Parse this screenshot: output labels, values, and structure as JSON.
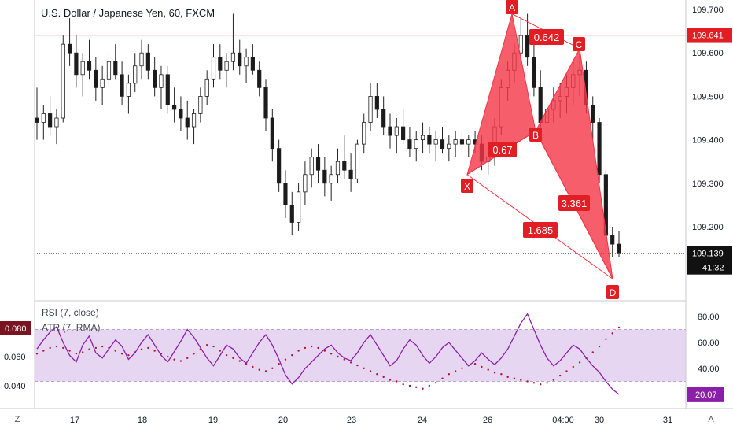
{
  "title": "U.S. Dollar / Japanese Yen, 60, FXCM",
  "colors": {
    "up": "#3a3a3a",
    "down": "#1b1b1b",
    "pattern_fill": "#f23645",
    "pattern_fill_opacity": 0.8,
    "pattern_line": "#f23645",
    "label_bg": "#e01e24",
    "hline": "#e01e24",
    "rsi": "#8b1fa9",
    "atr": "#b2182b",
    "rsi_band": "#e6d6f2",
    "price_tag_bg": "#111111",
    "grid": "#e0e3eb"
  },
  "chart_data": [
    {
      "type": "candlestick",
      "title": "U.S. Dollar / Japanese Yen, 60, FXCM",
      "x_ticks": [
        "17",
        "18",
        "19",
        "20",
        "23",
        "24",
        "26",
        "04:00",
        "30",
        "31"
      ],
      "y_ticks": [
        "109.700",
        "109.600",
        "109.500",
        "109.400",
        "109.300",
        "109.200"
      ],
      "ylim": [
        109.1,
        109.7
      ],
      "hline": {
        "value": 109.641,
        "label": "109.641"
      },
      "last_price": {
        "value": 109.139,
        "label": "109.139",
        "countdown": "41:32"
      },
      "ohlc_approx": [
        [
          109.45,
          109.52,
          109.4,
          109.44
        ],
        [
          109.44,
          109.48,
          109.4,
          109.46
        ],
        [
          109.46,
          109.5,
          109.41,
          109.43
        ],
        [
          109.43,
          109.47,
          109.39,
          109.45
        ],
        [
          109.45,
          109.64,
          109.44,
          109.62
        ],
        [
          109.62,
          109.68,
          109.57,
          109.6
        ],
        [
          109.6,
          109.64,
          109.52,
          109.55
        ],
        [
          109.55,
          109.6,
          109.5,
          109.58
        ],
        [
          109.58,
          109.63,
          109.54,
          109.56
        ],
        [
          109.56,
          109.59,
          109.49,
          109.52
        ],
        [
          109.52,
          109.57,
          109.48,
          109.54
        ],
        [
          109.54,
          109.6,
          109.52,
          109.58
        ],
        [
          109.58,
          109.62,
          109.54,
          109.55
        ],
        [
          109.55,
          109.58,
          109.48,
          109.5
        ],
        [
          109.5,
          109.55,
          109.46,
          109.53
        ],
        [
          109.53,
          109.6,
          109.51,
          109.57
        ],
        [
          109.57,
          109.63,
          109.54,
          109.6
        ],
        [
          109.6,
          109.62,
          109.54,
          109.56
        ],
        [
          109.56,
          109.59,
          109.5,
          109.52
        ],
        [
          109.52,
          109.57,
          109.47,
          109.55
        ],
        [
          109.55,
          109.57,
          109.46,
          109.48
        ],
        [
          109.48,
          109.52,
          109.44,
          109.47
        ],
        [
          109.47,
          109.5,
          109.42,
          109.45
        ],
        [
          109.45,
          109.49,
          109.4,
          109.43
        ],
        [
          109.43,
          109.47,
          109.39,
          109.46
        ],
        [
          109.46,
          109.52,
          109.44,
          109.5
        ],
        [
          109.5,
          109.56,
          109.48,
          109.54
        ],
        [
          109.54,
          109.62,
          109.52,
          109.59
        ],
        [
          109.59,
          109.62,
          109.54,
          109.56
        ],
        [
          109.56,
          109.6,
          109.52,
          109.58
        ],
        [
          109.58,
          109.69,
          109.56,
          109.6
        ],
        [
          109.6,
          109.63,
          109.55,
          109.57
        ],
        [
          109.57,
          109.61,
          109.53,
          109.59
        ],
        [
          109.59,
          109.62,
          109.55,
          109.56
        ],
        [
          109.56,
          109.58,
          109.5,
          109.52
        ],
        [
          109.52,
          109.54,
          109.42,
          109.45
        ],
        [
          109.45,
          109.47,
          109.35,
          109.38
        ],
        [
          109.38,
          109.4,
          109.28,
          109.3
        ],
        [
          109.3,
          109.33,
          109.22,
          109.25
        ],
        [
          109.25,
          109.28,
          109.18,
          109.21
        ],
        [
          109.21,
          109.3,
          109.19,
          109.28
        ],
        [
          109.28,
          109.35,
          109.25,
          109.32
        ],
        [
          109.32,
          109.38,
          109.29,
          109.36
        ],
        [
          109.36,
          109.39,
          109.3,
          109.33
        ],
        [
          109.33,
          109.36,
          109.27,
          109.3
        ],
        [
          109.3,
          109.34,
          109.26,
          109.32
        ],
        [
          109.32,
          109.38,
          109.3,
          109.35
        ],
        [
          109.35,
          109.41,
          109.31,
          109.33
        ],
        [
          109.33,
          109.37,
          109.28,
          109.31
        ],
        [
          109.31,
          109.4,
          109.3,
          109.39
        ],
        [
          109.39,
          109.46,
          109.37,
          109.44
        ],
        [
          109.44,
          109.53,
          109.42,
          109.5
        ],
        [
          109.5,
          109.53,
          109.45,
          109.47
        ],
        [
          109.47,
          109.5,
          109.41,
          109.43
        ],
        [
          109.43,
          109.46,
          109.38,
          109.41
        ],
        [
          109.41,
          109.45,
          109.37,
          109.43
        ],
        [
          109.43,
          109.47,
          109.39,
          109.4
        ],
        [
          109.4,
          109.43,
          109.36,
          109.38
        ],
        [
          109.38,
          109.42,
          109.35,
          109.4
        ],
        [
          109.4,
          109.44,
          109.37,
          109.41
        ],
        [
          109.41,
          109.43,
          109.37,
          109.39
        ],
        [
          109.39,
          109.42,
          109.35,
          109.4
        ],
        [
          109.4,
          109.43,
          109.37,
          109.38
        ],
        [
          109.38,
          109.41,
          109.35,
          109.39
        ],
        [
          109.39,
          109.42,
          109.36,
          109.4
        ],
        [
          109.4,
          109.42,
          109.37,
          109.39
        ],
        [
          109.39,
          109.41,
          109.36,
          109.4
        ],
        [
          109.4,
          109.42,
          109.37,
          109.39
        ],
        [
          109.39,
          109.41,
          109.33,
          109.35
        ],
        [
          109.35,
          109.37,
          109.32,
          109.36
        ],
        [
          109.36,
          109.45,
          109.34,
          109.43
        ],
        [
          109.43,
          109.54,
          109.41,
          109.52
        ],
        [
          109.52,
          109.58,
          109.49,
          109.56
        ],
        [
          109.56,
          109.62,
          109.53,
          109.6
        ],
        [
          109.6,
          109.68,
          109.58,
          109.64
        ],
        [
          109.64,
          109.69,
          109.57,
          109.59
        ],
        [
          109.59,
          109.64,
          109.5,
          109.52
        ],
        [
          109.52,
          109.56,
          109.42,
          109.44
        ],
        [
          109.44,
          109.49,
          109.4,
          109.47
        ],
        [
          109.47,
          109.52,
          109.44,
          109.49
        ],
        [
          109.49,
          109.53,
          109.45,
          109.5
        ],
        [
          109.5,
          109.55,
          109.46,
          109.52
        ],
        [
          109.52,
          109.58,
          109.48,
          109.55
        ],
        [
          109.55,
          109.6,
          109.5,
          109.56
        ],
        [
          109.56,
          109.58,
          109.46,
          109.48
        ],
        [
          109.48,
          109.5,
          109.4,
          109.44
        ],
        [
          109.44,
          109.45,
          109.3,
          109.32
        ],
        [
          109.32,
          109.33,
          109.14,
          109.18
        ],
        [
          109.18,
          109.2,
          109.13,
          109.16
        ],
        [
          109.16,
          109.19,
          109.13,
          109.14
        ]
      ]
    },
    {
      "type": "harmonic_pattern",
      "points": [
        {
          "name": "X",
          "value": 109.32
        },
        {
          "name": "A",
          "value": 109.69
        },
        {
          "name": "B",
          "value": 109.42
        },
        {
          "name": "C",
          "value": 109.61
        },
        {
          "name": "D",
          "value": 109.08
        }
      ],
      "ratios": [
        "0.642",
        "0.67",
        "3.361",
        "1.685"
      ]
    },
    {
      "type": "line",
      "indicators": [
        "RSI (7, close)",
        "ATR (7, RMA)"
      ],
      "right_ticks": [
        "80.00",
        "60.00",
        "40.00"
      ],
      "left_ticks": [
        "0.060",
        "0.040"
      ],
      "rsi_band": [
        30,
        70
      ],
      "rsi_last": "20.07",
      "atr_last": "0.080",
      "rsi_values": [
        55,
        62,
        68,
        72,
        60,
        50,
        45,
        58,
        65,
        52,
        48,
        55,
        62,
        57,
        47,
        52,
        60,
        66,
        58,
        50,
        45,
        53,
        61,
        70,
        64,
        56,
        48,
        42,
        50,
        58,
        55,
        48,
        44,
        52,
        60,
        66,
        58,
        47,
        35,
        28,
        33,
        40,
        45,
        50,
        55,
        58,
        52,
        48,
        46,
        52,
        60,
        66,
        58,
        50,
        42,
        46,
        55,
        62,
        58,
        50,
        44,
        49,
        56,
        60,
        54,
        48,
        42,
        46,
        52,
        47,
        43,
        48,
        55,
        65,
        75,
        82,
        70,
        58,
        48,
        42,
        46,
        52,
        58,
        55,
        48,
        42,
        37,
        30,
        24,
        20
      ],
      "atr_values": [
        0.062,
        0.064,
        0.066,
        0.067,
        0.066,
        0.064,
        0.062,
        0.063,
        0.065,
        0.066,
        0.067,
        0.066,
        0.064,
        0.062,
        0.061,
        0.063,
        0.065,
        0.066,
        0.064,
        0.062,
        0.06,
        0.058,
        0.057,
        0.059,
        0.062,
        0.065,
        0.068,
        0.067,
        0.064,
        0.061,
        0.059,
        0.057,
        0.055,
        0.053,
        0.051,
        0.05,
        0.052,
        0.055,
        0.058,
        0.061,
        0.064,
        0.066,
        0.067,
        0.066,
        0.064,
        0.062,
        0.06,
        0.058,
        0.056,
        0.054,
        0.052,
        0.05,
        0.048,
        0.046,
        0.044,
        0.043,
        0.041,
        0.04,
        0.039,
        0.038,
        0.04,
        0.042,
        0.045,
        0.048,
        0.05,
        0.052,
        0.054,
        0.055,
        0.053,
        0.051,
        0.049,
        0.048,
        0.046,
        0.045,
        0.044,
        0.043,
        0.042,
        0.041,
        0.042,
        0.044,
        0.047,
        0.05,
        0.053,
        0.056,
        0.059,
        0.063,
        0.067,
        0.072,
        0.076,
        0.08
      ]
    }
  ],
  "axis": {
    "right_axis_corner": "A",
    "left_axis_corner": "Z"
  }
}
